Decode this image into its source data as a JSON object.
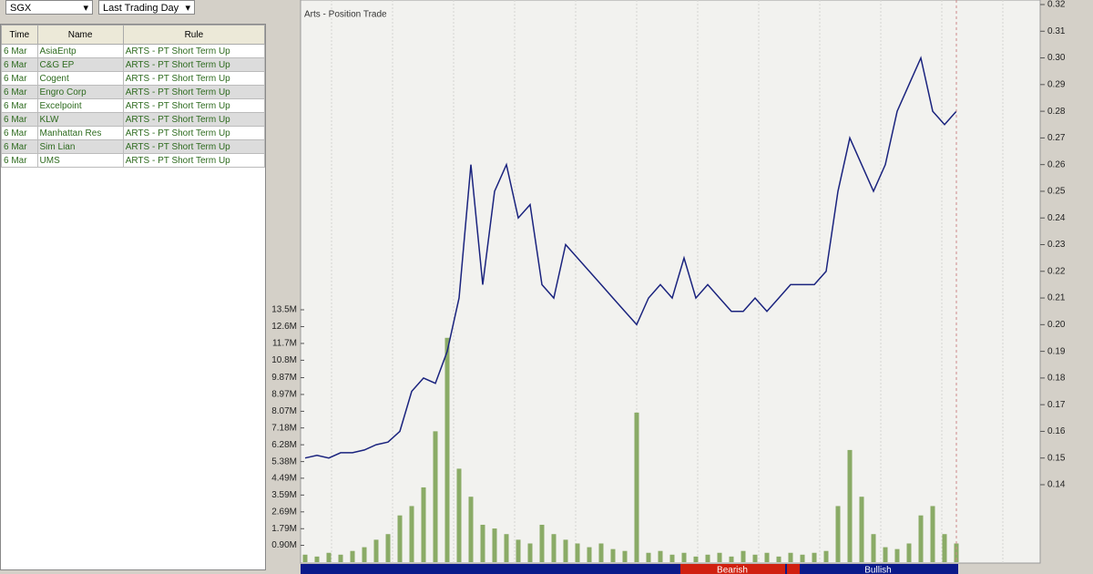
{
  "toolbar": {
    "exchange": "SGX",
    "period": "Last Trading Day"
  },
  "table": {
    "headers": [
      "Time",
      "Name",
      "Rule"
    ],
    "rows": [
      [
        "6 Mar",
        "AsiaEntp",
        "ARTS - PT Short Term Up"
      ],
      [
        "6 Mar",
        "C&G EP",
        "ARTS - PT Short Term Up"
      ],
      [
        "6 Mar",
        "Cogent",
        "ARTS - PT Short Term Up"
      ],
      [
        "6 Mar",
        "Engro Corp",
        "ARTS - PT Short Term Up"
      ],
      [
        "6 Mar",
        "Excelpoint",
        "ARTS - PT Short Term Up"
      ],
      [
        "6 Mar",
        "KLW",
        "ARTS - PT Short Term Up"
      ],
      [
        "6 Mar",
        "Manhattan Res",
        "ARTS - PT Short Term Up"
      ],
      [
        "6 Mar",
        "Sim Lian",
        "ARTS - PT Short Term Up"
      ],
      [
        "6 Mar",
        "UMS",
        "ARTS - PT Short Term Up"
      ]
    ]
  },
  "chart_data": {
    "type": "line",
    "title": "Arts - Position Trade",
    "color": "#1a237e",
    "values": [
      0.15,
      0.151,
      0.15,
      0.152,
      0.152,
      0.153,
      0.155,
      0.156,
      0.16,
      0.175,
      0.18,
      0.178,
      0.19,
      0.21,
      0.26,
      0.215,
      0.25,
      0.26,
      0.24,
      0.245,
      0.215,
      0.21,
      0.23,
      0.225,
      0.22,
      0.215,
      0.21,
      0.205,
      0.2,
      0.21,
      0.215,
      0.21,
      0.225,
      0.21,
      0.215,
      0.21,
      0.205,
      0.205,
      0.21,
      0.205,
      0.21,
      0.215,
      0.215,
      0.215,
      0.22,
      0.25,
      0.27,
      0.26,
      0.25,
      0.26,
      0.28,
      0.29,
      0.3,
      0.28,
      0.275,
      0.28
    ],
    "ylim": [
      0.14,
      0.32
    ],
    "yticks": [
      0.32,
      0.31,
      {
        "value": 0.3,
        "label": "0.30"
      },
      0.29,
      0.28,
      0.27,
      0.26,
      0.25,
      0.24,
      0.23,
      0.22,
      0.21,
      {
        "value": 0.2,
        "label": "0.20"
      },
      0.19,
      0.18,
      0.17,
      0.16,
      0.15,
      0.14
    ],
    "volume_color": "#8aab66",
    "volume_values": [
      0.4,
      0.3,
      0.5,
      0.4,
      0.6,
      0.8,
      1.2,
      1.5,
      2.5,
      3.0,
      4.0,
      7.0,
      12.0,
      5.0,
      3.5,
      2.0,
      1.8,
      1.5,
      1.2,
      1.0,
      2.0,
      1.5,
      1.2,
      1.0,
      0.8,
      1.0,
      0.7,
      0.6,
      8.0,
      0.5,
      0.6,
      0.4,
      0.5,
      0.3,
      0.4,
      0.5,
      0.3,
      0.6,
      0.4,
      0.5,
      0.3,
      0.5,
      0.4,
      0.5,
      0.6,
      3.0,
      6.0,
      3.5,
      1.5,
      0.8,
      0.7,
      1.0,
      2.5,
      3.0,
      1.5,
      1.0
    ],
    "volume_ylim": [
      0,
      13.5
    ],
    "volume_ticks": [
      {
        "value": 13.5,
        "label": "13.5M"
      },
      {
        "value": 12.6,
        "label": "12.6M"
      },
      {
        "value": 11.7,
        "label": "11.7M"
      },
      {
        "value": 10.8,
        "label": "10.8M"
      },
      {
        "value": 9.87,
        "label": "9.87M"
      },
      {
        "value": 8.97,
        "label": "8.97M"
      },
      {
        "value": 8.07,
        "label": "8.07M"
      },
      {
        "value": 7.18,
        "label": "7.18M"
      },
      {
        "value": 6.28,
        "label": "6.28M"
      },
      {
        "value": 5.38,
        "label": "5.38M"
      },
      {
        "value": 4.49,
        "label": "4.49M"
      },
      {
        "value": 3.59,
        "label": "3.59M"
      },
      {
        "value": 2.69,
        "label": "2.69M"
      },
      {
        "value": 1.79,
        "label": "1.79M"
      },
      {
        "value": 0.9,
        "label": "0.90M"
      }
    ],
    "bands": [
      "Bearish",
      "Bullish"
    ]
  }
}
